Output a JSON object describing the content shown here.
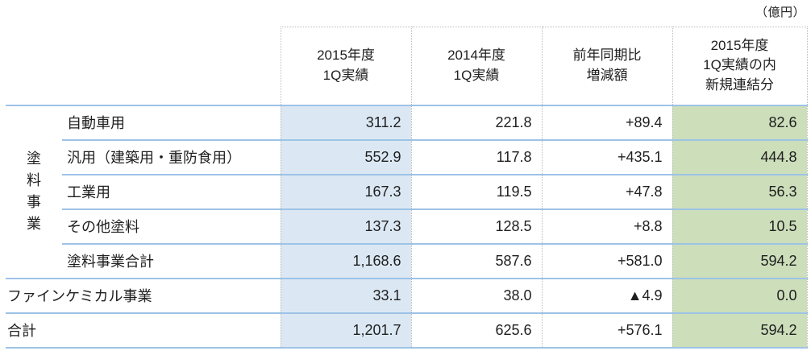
{
  "unit_label": "（億円）",
  "colors": {
    "highlight_blue": "#dbe8f4",
    "highlight_green": "#ccdeba",
    "rule_blue": "#9dc3e6",
    "dotted_gray": "#b9b9b9",
    "text": "#1f1f1f"
  },
  "table": {
    "group_label": "塗料事業",
    "columns": [
      {
        "label": "2015年度\n1Q実績",
        "highlight": "blue"
      },
      {
        "label": "2014年度\n1Q実績",
        "highlight": "none"
      },
      {
        "label": "前年同期比\n増減額",
        "highlight": "none"
      },
      {
        "label": "2015年度\n1Q実績の内\n新規連結分",
        "highlight": "green"
      }
    ],
    "rows": [
      {
        "label": "自動車用",
        "values": [
          "311.2",
          "221.8",
          "+89.4",
          "82.6"
        ]
      },
      {
        "label": "汎用（建築用・重防食用）",
        "values": [
          "552.9",
          "117.8",
          "+435.1",
          "444.8"
        ]
      },
      {
        "label": "工業用",
        "values": [
          "167.3",
          "119.5",
          "+47.8",
          "56.3"
        ]
      },
      {
        "label": "その他塗料",
        "values": [
          "137.3",
          "128.5",
          "+8.8",
          "10.5"
        ]
      },
      {
        "label": "塗料事業合計",
        "values": [
          "1,168.6",
          "587.6",
          "+581.0",
          "594.2"
        ]
      },
      {
        "label": "ファインケミカル事業",
        "values": [
          "33.1",
          "38.0",
          "▲4.9",
          "0.0"
        ]
      },
      {
        "label": "合計",
        "values": [
          "1,201.7",
          "625.6",
          "+576.1",
          "594.2"
        ]
      }
    ]
  }
}
